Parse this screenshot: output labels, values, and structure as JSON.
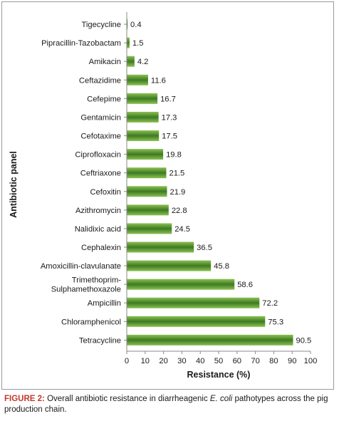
{
  "chart_data": {
    "type": "bar",
    "orientation": "horizontal",
    "categories": [
      "Tigecycline",
      "Pipracillin-Tazobactam",
      "Amikacin",
      "Ceftazidime",
      "Cefepime",
      "Gentamicin",
      "Cefotaxime",
      "Ciprofloxacin",
      "Ceftriaxone",
      "Cefoxitin",
      "Azithromycin",
      "Nalidixic acid",
      "Cephalexin",
      "Amoxicillin-clavulanate",
      "Trimethoprim-\nSulphamethoxazole",
      "Ampicillin",
      "Chloramphenicol",
      "Tetracycline"
    ],
    "values": [
      0.4,
      1.5,
      4.2,
      11.6,
      16.7,
      17.3,
      17.5,
      19.8,
      21.5,
      21.9,
      22.8,
      24.5,
      36.5,
      45.8,
      58.6,
      72.2,
      75.3,
      90.5
    ],
    "value_labels": [
      "0.4",
      "1.5",
      "4.2",
      "11.6",
      "16.7",
      "17.3",
      "17.5",
      "19.8",
      "21.5",
      "21.9",
      "22.8",
      "24.5",
      "36.5",
      "45.8",
      "58.6",
      "72.2",
      "75.3",
      "90.5"
    ],
    "xlabel": "Resistance (%)",
    "ylabel": "Antibiotic panel",
    "xlim": [
      0,
      100
    ],
    "xticks": [
      0,
      10,
      20,
      30,
      40,
      50,
      60,
      70,
      80,
      90,
      100
    ],
    "grid": false,
    "legend": "none",
    "colors": {
      "bar_edge": "#8cc152",
      "bar_center": "#3d7a22",
      "axis": "#8a8a8a"
    }
  },
  "caption": {
    "label": "FIGURE 2:",
    "text_before": " Overall antibiotic resistance in diarrheagenic ",
    "italic": "E. coli",
    "text_after": " pathotypes across the pig production chain."
  }
}
